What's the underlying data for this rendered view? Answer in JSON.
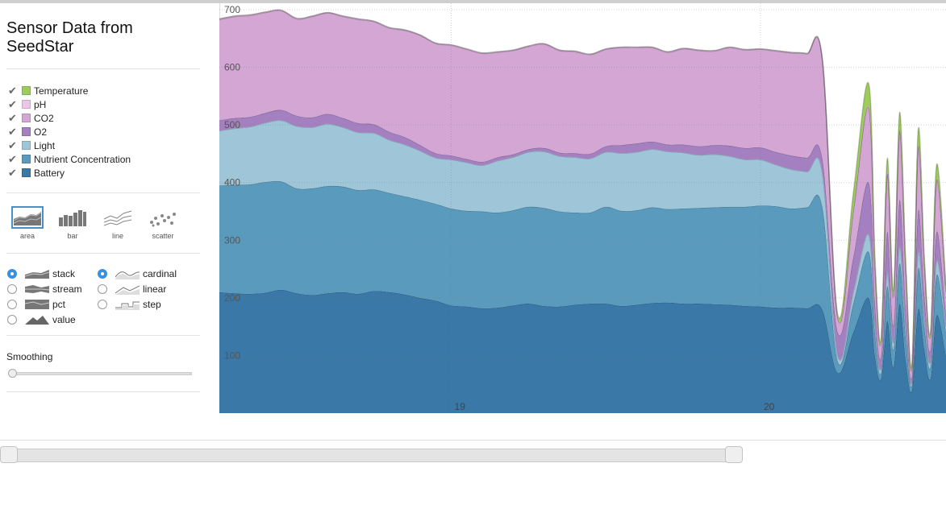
{
  "title": "Sensor Data from SeedStar",
  "legend": [
    {
      "label": "Temperature",
      "color": "#9ccc5a",
      "checked": true
    },
    {
      "label": "pH",
      "color": "#ebc6e6",
      "checked": true
    },
    {
      "label": "CO2",
      "color": "#d4a6d4",
      "checked": true
    },
    {
      "label": "O2",
      "color": "#a480c0",
      "checked": true
    },
    {
      "label": "Light",
      "color": "#9ec5d8",
      "checked": true
    },
    {
      "label": "Nutrient Concentration",
      "color": "#5a9bbd",
      "checked": true
    },
    {
      "label": "Battery",
      "color": "#3a78a8",
      "checked": true
    }
  ],
  "renderers": [
    {
      "label": "area",
      "selected": true,
      "icon": "area-chart-icon"
    },
    {
      "label": "bar",
      "selected": false,
      "icon": "bar-chart-icon"
    },
    {
      "label": "line",
      "selected": false,
      "icon": "line-chart-icon"
    },
    {
      "label": "scatter",
      "selected": false,
      "icon": "scatter-chart-icon"
    }
  ],
  "offset": [
    {
      "label": "stack",
      "selected": true
    },
    {
      "label": "stream",
      "selected": false
    },
    {
      "label": "pct",
      "selected": false
    },
    {
      "label": "value",
      "selected": false
    }
  ],
  "interpolation": [
    {
      "label": "cardinal",
      "selected": true
    },
    {
      "label": "linear",
      "selected": false
    },
    {
      "label": "step",
      "selected": false
    }
  ],
  "smoothing": {
    "label": "Smoothing",
    "value": 0
  },
  "chart_data": {
    "type": "area",
    "stacked": true,
    "title": "",
    "xlabel": "",
    "ylabel": "",
    "ylim": [
      0,
      700
    ],
    "xlim": [
      18.25,
      20.6
    ],
    "x_ticks": [
      "19",
      "20"
    ],
    "x_tick_values": [
      19,
      20
    ],
    "y_ticks": [
      "100",
      "200",
      "300",
      "400",
      "500",
      "600",
      "700"
    ],
    "y_tick_values": [
      100,
      200,
      300,
      400,
      500,
      600,
      700
    ],
    "x": [
      18.25,
      18.3,
      18.35,
      18.4,
      18.45,
      18.5,
      18.55,
      18.6,
      18.65,
      18.7,
      18.75,
      18.8,
      18.85,
      18.9,
      18.95,
      19.0,
      19.05,
      19.1,
      19.15,
      19.2,
      19.25,
      19.3,
      19.35,
      19.4,
      19.45,
      19.5,
      19.55,
      19.6,
      19.65,
      19.7,
      19.75,
      19.8,
      19.85,
      19.9,
      19.95,
      20.0,
      20.05,
      20.1,
      20.15,
      20.2,
      20.25,
      20.3,
      20.35,
      20.37,
      20.39,
      20.41,
      20.43,
      20.45,
      20.47,
      20.49,
      20.51,
      20.53,
      20.55,
      20.57,
      20.6
    ],
    "series": [
      {
        "name": "Battery",
        "color": "#3a78a8",
        "values": [
          210,
          208,
          207,
          209,
          214,
          208,
          205,
          208,
          210,
          207,
          212,
          210,
          206,
          200,
          195,
          187,
          185,
          182,
          183,
          187,
          190,
          186,
          185,
          188,
          190,
          190,
          186,
          188,
          191,
          192,
          190,
          190,
          189,
          188,
          186,
          185,
          183,
          183,
          182,
          180,
          70,
          140,
          200,
          100,
          60,
          160,
          80,
          190,
          90,
          40,
          180,
          110,
          60,
          170,
          100
        ]
      },
      {
        "name": "Nutrient Concentration",
        "color": "#5a9bbd",
        "values": [
          185,
          188,
          190,
          192,
          188,
          182,
          185,
          186,
          183,
          180,
          176,
          172,
          170,
          170,
          168,
          168,
          166,
          168,
          165,
          165,
          168,
          170,
          165,
          160,
          158,
          168,
          165,
          164,
          166,
          162,
          165,
          166,
          168,
          170,
          172,
          175,
          176,
          172,
          175,
          178,
          20,
          50,
          80,
          40,
          10,
          60,
          30,
          70,
          40,
          10,
          70,
          40,
          20,
          70,
          40
        ]
      },
      {
        "name": "Light",
        "color": "#9ec5d8",
        "values": [
          95,
          98,
          100,
          103,
          106,
          108,
          106,
          108,
          103,
          100,
          98,
          92,
          90,
          85,
          80,
          85,
          84,
          80,
          90,
          92,
          95,
          98,
          96,
          96,
          94,
          95,
          100,
          101,
          101,
          100,
          97,
          92,
          92,
          88,
          82,
          80,
          72,
          68,
          62,
          60,
          10,
          20,
          30,
          15,
          8,
          25,
          12,
          30,
          15,
          5,
          30,
          15,
          10,
          25,
          10
        ]
      },
      {
        "name": "O2",
        "color": "#a480c0",
        "values": [
          18,
          18,
          17,
          17,
          18,
          18,
          17,
          17,
          16,
          16,
          15,
          14,
          13,
          10,
          8,
          7,
          6,
          6,
          6,
          5,
          5,
          6,
          6,
          7,
          8,
          10,
          14,
          15,
          13,
          12,
          14,
          15,
          16,
          18,
          20,
          21,
          22,
          24,
          24,
          24,
          40,
          60,
          90,
          40,
          20,
          70,
          30,
          80,
          40,
          10,
          70,
          40,
          20,
          50,
          20
        ]
      },
      {
        "name": "CO2",
        "color": "#d4a6d4",
        "values": [
          175,
          176,
          176,
          174,
          172,
          168,
          175,
          175,
          176,
          180,
          178,
          180,
          185,
          190,
          190,
          191,
          190,
          188,
          182,
          180,
          178,
          180,
          177,
          176,
          172,
          168,
          169,
          166,
          163,
          160,
          166,
          166,
          163,
          170,
          170,
          170,
          175,
          178,
          180,
          172,
          25,
          80,
          130,
          60,
          25,
          100,
          50,
          120,
          60,
          15,
          110,
          50,
          25,
          90,
          40
        ]
      },
      {
        "name": "pH",
        "color": "#ebc6e6",
        "values": [
          1,
          1,
          1,
          1,
          1,
          1,
          1,
          1,
          1,
          1,
          1,
          1,
          1,
          1,
          1,
          1,
          1,
          1,
          1,
          1,
          1,
          1,
          1,
          1,
          1,
          1,
          1,
          1,
          1,
          1,
          1,
          1,
          1,
          1,
          1,
          1,
          1,
          1,
          1,
          1,
          1,
          2,
          2,
          1,
          1,
          2,
          1,
          2,
          1,
          1,
          2,
          1,
          1,
          2,
          1
        ]
      },
      {
        "name": "Temperature",
        "color": "#9ccc5a",
        "values": [
          0,
          0,
          0,
          0,
          0,
          0,
          0,
          0,
          0,
          0,
          0,
          0,
          0,
          0,
          0,
          0,
          0,
          0,
          0,
          0,
          0,
          0,
          0,
          0,
          0,
          0,
          0,
          0,
          0,
          0,
          0,
          0,
          0,
          0,
          0,
          0,
          0,
          0,
          0,
          0,
          5,
          30,
          40,
          20,
          5,
          25,
          10,
          30,
          15,
          5,
          30,
          15,
          5,
          25,
          10
        ]
      }
    ],
    "grid": true,
    "legend_placement": "left-sidebar"
  },
  "range": {
    "start": 0,
    "end": 1
  }
}
